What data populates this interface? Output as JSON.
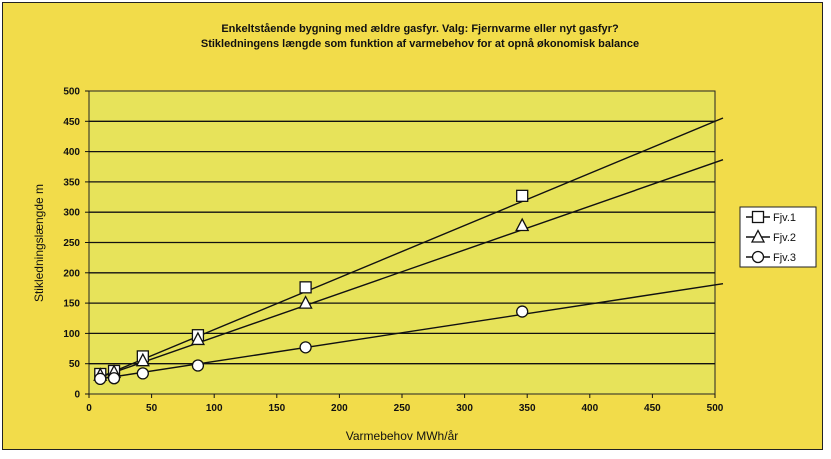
{
  "chart_data": {
    "type": "scatter",
    "title": [
      "Enkeltstående bygning med ældre gasfyr. Valg: Fjernvarme eller nyt gasfyr?",
      "Stikledningens længde som funktion af varmebehov for at opnå økonomisk balance"
    ],
    "xlabel": "Varmebehov MWh/år",
    "ylabel": "Stikledningslængde m",
    "xlim": [
      0,
      500
    ],
    "ylim": [
      0,
      500
    ],
    "xticks": [
      0,
      50,
      100,
      150,
      200,
      250,
      300,
      350,
      400,
      450,
      500
    ],
    "yticks": [
      0,
      50,
      100,
      150,
      200,
      250,
      300,
      350,
      400,
      450,
      500
    ],
    "grid": "horizontal",
    "legend_position": "right",
    "plot_background": "#e7e35a",
    "series": [
      {
        "name": "Fjv.1",
        "marker": "square",
        "points": [
          [
            9,
            33
          ],
          [
            20,
            38
          ],
          [
            43,
            62
          ],
          [
            87,
            97
          ],
          [
            173,
            176
          ],
          [
            346,
            327
          ]
        ],
        "trend": [
          [
            9,
            28
          ],
          [
            500,
            450
          ]
        ]
      },
      {
        "name": "Fjv.2",
        "marker": "triangle",
        "points": [
          [
            9,
            31
          ],
          [
            20,
            36
          ],
          [
            43,
            55
          ],
          [
            87,
            90
          ],
          [
            173,
            150
          ],
          [
            346,
            278
          ]
        ],
        "trend": [
          [
            9,
            28
          ],
          [
            500,
            382
          ]
        ]
      },
      {
        "name": "Fjv.3",
        "marker": "circle",
        "points": [
          [
            9,
            25
          ],
          [
            20,
            26
          ],
          [
            43,
            34
          ],
          [
            87,
            47
          ],
          [
            173,
            77
          ],
          [
            346,
            136
          ]
        ],
        "trend": [
          [
            9,
            25
          ],
          [
            500,
            180
          ]
        ]
      }
    ]
  }
}
